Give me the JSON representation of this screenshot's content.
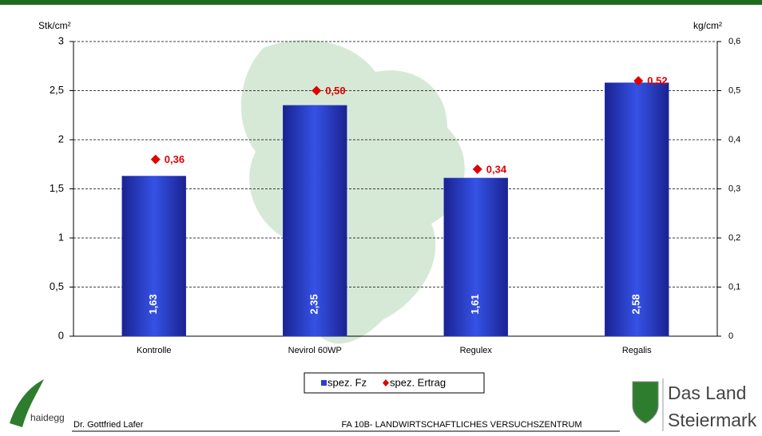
{
  "chart_data": {
    "type": "bar",
    "y_label": "Stk/cm²",
    "y2_label": "kg/cm²",
    "categories": [
      "Kontrolle",
      "Nevirol 60WP",
      "Regulex",
      "Regalis"
    ],
    "series": [
      {
        "name": "spez. Fz",
        "type": "bar",
        "color": "#2a3fd0",
        "values": [
          1.63,
          2.35,
          1.61,
          2.58
        ],
        "value_labels": [
          "1,63",
          "2,35",
          "1,61",
          "2,58"
        ]
      },
      {
        "name": "spez. Ertrag",
        "type": "scatter",
        "axis": "y2",
        "color": "#e00000",
        "values": [
          0.36,
          0.5,
          0.34,
          0.52
        ],
        "value_labels": [
          "0,36",
          "0,50",
          "0,34",
          "0,52"
        ]
      }
    ],
    "ylim": [
      0,
      3
    ],
    "yticks": [
      0,
      {
        "value": 0.5,
        "label": "0,5"
      },
      1,
      {
        "value": 1.5,
        "label": "1,5"
      },
      2,
      {
        "value": 2.5,
        "label": "2,5"
      },
      3
    ],
    "y2lim": [
      0,
      0.6
    ],
    "y2ticks": [
      0,
      {
        "value": 0.1,
        "label": "0,1"
      },
      {
        "value": 0.2,
        "label": "0,2"
      },
      {
        "value": 0.3,
        "label": "0,3"
      },
      {
        "value": 0.4,
        "label": "0,4"
      },
      {
        "value": 0.5,
        "label": "0,5"
      },
      {
        "value": 0.6,
        "label": "0,6"
      }
    ],
    "grid": true,
    "legend": "bottom"
  },
  "footer": {
    "logo_left": "haidegg",
    "author": "Dr. Gottfried Lafer",
    "center": "FA 10B- LANDWIRTSCHAFTLICHES VERSUCHSZENTRUM",
    "logo_right_1": "Das Land",
    "logo_right_2": "Steiermark"
  }
}
